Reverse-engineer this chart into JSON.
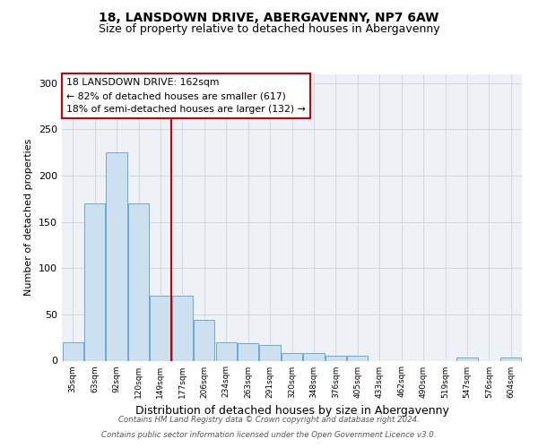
{
  "title_line1": "18, LANSDOWN DRIVE, ABERGAVENNY, NP7 6AW",
  "title_line2": "Size of property relative to detached houses in Abergavenny",
  "xlabel": "Distribution of detached houses by size in Abergavenny",
  "ylabel": "Number of detached properties",
  "bar_labels": [
    "35sqm",
    "63sqm",
    "92sqm",
    "120sqm",
    "149sqm",
    "177sqm",
    "206sqm",
    "234sqm",
    "263sqm",
    "291sqm",
    "320sqm",
    "348sqm",
    "376sqm",
    "405sqm",
    "433sqm",
    "462sqm",
    "490sqm",
    "519sqm",
    "547sqm",
    "576sqm",
    "604sqm"
  ],
  "bar_values": [
    20,
    170,
    225,
    170,
    70,
    70,
    44,
    20,
    19,
    17,
    8,
    8,
    5,
    5,
    0,
    0,
    0,
    0,
    3,
    0,
    3
  ],
  "bar_color": "#cde0f0",
  "bar_edge_color": "#6aaad4",
  "vline_x": 4.5,
  "vline_color": "#cc0000",
  "annotation_text": "18 LANSDOWN DRIVE: 162sqm\n← 82% of detached houses are smaller (617)\n18% of semi-detached houses are larger (132) →",
  "annotation_box_facecolor": "white",
  "annotation_box_edgecolor": "#cc0000",
  "ylim": [
    0,
    310
  ],
  "yticks": [
    0,
    50,
    100,
    150,
    200,
    250,
    300
  ],
  "footer_line1": "Contains HM Land Registry data © Crown copyright and database right 2024.",
  "footer_line2": "Contains public sector information licensed under the Open Government Licence v3.0.",
  "bg_color": "#ffffff",
  "plot_bg_color": "#eef2f7",
  "grid_color": "#d0d8e0",
  "title1_fontsize": 10,
  "title2_fontsize": 9,
  "ylabel_fontsize": 8,
  "xlabel_fontsize": 9
}
